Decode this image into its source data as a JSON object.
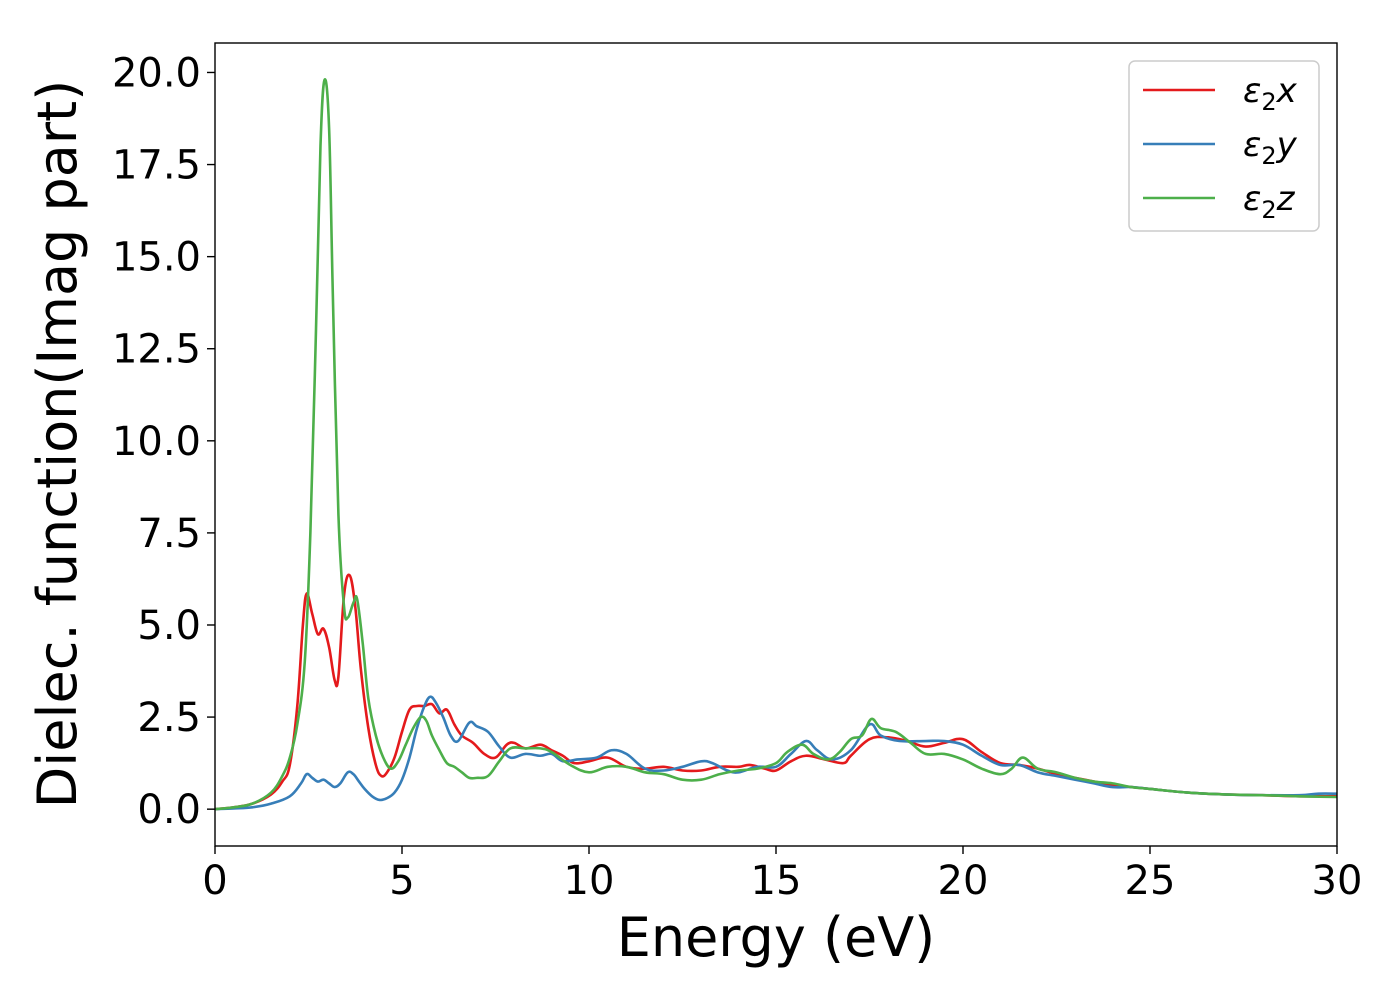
{
  "chart_data": {
    "type": "line",
    "title": "",
    "xlabel": "Energy (eV)",
    "ylabel": "Dielec. function(Imag part)",
    "xlim": [
      0,
      30
    ],
    "ylim": [
      -1.0,
      20.8
    ],
    "xticks": [
      0,
      5,
      10,
      15,
      20,
      25,
      30
    ],
    "xtick_labels": [
      "0",
      "5",
      "10",
      "15",
      "20",
      "25",
      "30"
    ],
    "yticks": [
      0,
      2.5,
      5,
      7.5,
      10,
      12.5,
      15,
      17.5,
      20
    ],
    "ytick_labels": [
      "0.0",
      "2.5",
      "5.0",
      "7.5",
      "10.0",
      "12.5",
      "15.0",
      "17.5",
      "20.0"
    ],
    "grid": false,
    "legend_position": "top-right",
    "series": [
      {
        "name": "ε₂x",
        "legend_base": "ε",
        "legend_sub": "2",
        "legend_var": "x",
        "color": "#e41a1c",
        "points": [
          [
            0,
            0
          ],
          [
            0.5,
            0.05
          ],
          [
            1.0,
            0.15
          ],
          [
            1.5,
            0.4
          ],
          [
            1.8,
            0.75
          ],
          [
            2.0,
            1.2
          ],
          [
            2.2,
            2.8
          ],
          [
            2.35,
            5.0
          ],
          [
            2.45,
            5.85
          ],
          [
            2.6,
            5.3
          ],
          [
            2.75,
            4.75
          ],
          [
            2.9,
            4.9
          ],
          [
            3.05,
            4.4
          ],
          [
            3.2,
            3.5
          ],
          [
            3.3,
            3.6
          ],
          [
            3.45,
            5.8
          ],
          [
            3.6,
            6.35
          ],
          [
            3.75,
            5.5
          ],
          [
            3.9,
            3.8
          ],
          [
            4.1,
            2.2
          ],
          [
            4.3,
            1.2
          ],
          [
            4.45,
            0.9
          ],
          [
            4.6,
            1.0
          ],
          [
            4.8,
            1.4
          ],
          [
            5.0,
            2.1
          ],
          [
            5.2,
            2.7
          ],
          [
            5.4,
            2.8
          ],
          [
            5.6,
            2.8
          ],
          [
            5.8,
            2.85
          ],
          [
            6.0,
            2.6
          ],
          [
            6.2,
            2.7
          ],
          [
            6.4,
            2.3
          ],
          [
            6.6,
            2.0
          ],
          [
            6.9,
            1.8
          ],
          [
            7.2,
            1.5
          ],
          [
            7.5,
            1.4
          ],
          [
            7.8,
            1.75
          ],
          [
            8.0,
            1.8
          ],
          [
            8.3,
            1.65
          ],
          [
            8.7,
            1.75
          ],
          [
            9.0,
            1.6
          ],
          [
            9.3,
            1.45
          ],
          [
            9.6,
            1.25
          ],
          [
            10.0,
            1.3
          ],
          [
            10.5,
            1.4
          ],
          [
            11.0,
            1.15
          ],
          [
            11.5,
            1.1
          ],
          [
            12.0,
            1.15
          ],
          [
            12.5,
            1.05
          ],
          [
            13.0,
            1.05
          ],
          [
            13.5,
            1.15
          ],
          [
            14.0,
            1.15
          ],
          [
            14.3,
            1.2
          ],
          [
            14.7,
            1.1
          ],
          [
            15.0,
            1.05
          ],
          [
            15.4,
            1.3
          ],
          [
            15.8,
            1.45
          ],
          [
            16.3,
            1.35
          ],
          [
            16.8,
            1.25
          ],
          [
            17.0,
            1.45
          ],
          [
            17.5,
            1.9
          ],
          [
            18.0,
            1.95
          ],
          [
            18.5,
            1.85
          ],
          [
            19.0,
            1.7
          ],
          [
            19.5,
            1.8
          ],
          [
            20.0,
            1.9
          ],
          [
            20.5,
            1.55
          ],
          [
            21.0,
            1.25
          ],
          [
            21.5,
            1.2
          ],
          [
            22.0,
            1.1
          ],
          [
            22.5,
            0.95
          ],
          [
            23.0,
            0.85
          ],
          [
            23.5,
            0.75
          ],
          [
            24.0,
            0.65
          ],
          [
            24.5,
            0.6
          ],
          [
            25.0,
            0.55
          ],
          [
            26.0,
            0.45
          ],
          [
            27.0,
            0.4
          ],
          [
            28.0,
            0.38
          ],
          [
            29.0,
            0.35
          ],
          [
            30.0,
            0.35
          ]
        ]
      },
      {
        "name": "ε₂y",
        "legend_base": "ε",
        "legend_sub": "2",
        "legend_var": "y",
        "color": "#377eb8",
        "points": [
          [
            0,
            0
          ],
          [
            0.5,
            0.02
          ],
          [
            1.0,
            0.05
          ],
          [
            1.5,
            0.15
          ],
          [
            2.0,
            0.35
          ],
          [
            2.3,
            0.7
          ],
          [
            2.45,
            0.95
          ],
          [
            2.6,
            0.85
          ],
          [
            2.75,
            0.75
          ],
          [
            2.9,
            0.8
          ],
          [
            3.05,
            0.7
          ],
          [
            3.2,
            0.6
          ],
          [
            3.35,
            0.7
          ],
          [
            3.55,
            1.0
          ],
          [
            3.7,
            0.95
          ],
          [
            3.85,
            0.75
          ],
          [
            4.0,
            0.55
          ],
          [
            4.2,
            0.35
          ],
          [
            4.4,
            0.25
          ],
          [
            4.6,
            0.3
          ],
          [
            4.8,
            0.45
          ],
          [
            5.0,
            0.8
          ],
          [
            5.2,
            1.4
          ],
          [
            5.4,
            2.2
          ],
          [
            5.6,
            2.8
          ],
          [
            5.75,
            3.05
          ],
          [
            5.9,
            2.9
          ],
          [
            6.1,
            2.5
          ],
          [
            6.3,
            2.0
          ],
          [
            6.5,
            1.85
          ],
          [
            6.8,
            2.35
          ],
          [
            7.0,
            2.25
          ],
          [
            7.3,
            2.1
          ],
          [
            7.6,
            1.7
          ],
          [
            7.9,
            1.4
          ],
          [
            8.3,
            1.5
          ],
          [
            8.7,
            1.45
          ],
          [
            9.0,
            1.5
          ],
          [
            9.3,
            1.3
          ],
          [
            9.7,
            1.35
          ],
          [
            10.2,
            1.4
          ],
          [
            10.6,
            1.6
          ],
          [
            11.0,
            1.5
          ],
          [
            11.5,
            1.1
          ],
          [
            12.0,
            1.05
          ],
          [
            12.5,
            1.15
          ],
          [
            13.0,
            1.3
          ],
          [
            13.3,
            1.25
          ],
          [
            13.7,
            1.05
          ],
          [
            14.0,
            1.0
          ],
          [
            14.5,
            1.15
          ],
          [
            15.0,
            1.15
          ],
          [
            15.4,
            1.5
          ],
          [
            15.8,
            1.85
          ],
          [
            16.1,
            1.6
          ],
          [
            16.5,
            1.35
          ],
          [
            17.0,
            1.6
          ],
          [
            17.5,
            2.3
          ],
          [
            17.8,
            2.0
          ],
          [
            18.3,
            1.85
          ],
          [
            19.0,
            1.85
          ],
          [
            19.5,
            1.85
          ],
          [
            20.0,
            1.75
          ],
          [
            20.5,
            1.45
          ],
          [
            21.0,
            1.2
          ],
          [
            21.5,
            1.2
          ],
          [
            22.0,
            1.0
          ],
          [
            22.5,
            0.9
          ],
          [
            23.0,
            0.8
          ],
          [
            23.5,
            0.7
          ],
          [
            24.0,
            0.6
          ],
          [
            24.5,
            0.6
          ],
          [
            25.0,
            0.55
          ],
          [
            26.0,
            0.45
          ],
          [
            27.0,
            0.4
          ],
          [
            28.0,
            0.38
          ],
          [
            29.0,
            0.38
          ],
          [
            29.5,
            0.42
          ],
          [
            30.0,
            0.42
          ]
        ]
      },
      {
        "name": "ε₂z",
        "legend_base": "ε",
        "legend_sub": "2",
        "legend_var": "z",
        "color": "#4daf4a",
        "points": [
          [
            0,
            0
          ],
          [
            0.5,
            0.05
          ],
          [
            1.0,
            0.15
          ],
          [
            1.5,
            0.45
          ],
          [
            1.8,
            0.9
          ],
          [
            2.0,
            1.4
          ],
          [
            2.2,
            2.3
          ],
          [
            2.4,
            4.0
          ],
          [
            2.55,
            7.5
          ],
          [
            2.7,
            13.0
          ],
          [
            2.82,
            18.0
          ],
          [
            2.93,
            19.8
          ],
          [
            3.05,
            18.5
          ],
          [
            3.15,
            14.0
          ],
          [
            3.3,
            8.0
          ],
          [
            3.45,
            5.5
          ],
          [
            3.55,
            5.2
          ],
          [
            3.7,
            5.6
          ],
          [
            3.8,
            5.7
          ],
          [
            3.95,
            4.5
          ],
          [
            4.1,
            3.0
          ],
          [
            4.3,
            2.0
          ],
          [
            4.5,
            1.4
          ],
          [
            4.7,
            1.1
          ],
          [
            4.9,
            1.3
          ],
          [
            5.1,
            1.75
          ],
          [
            5.3,
            2.2
          ],
          [
            5.5,
            2.5
          ],
          [
            5.65,
            2.4
          ],
          [
            5.8,
            2.0
          ],
          [
            6.0,
            1.6
          ],
          [
            6.2,
            1.25
          ],
          [
            6.4,
            1.15
          ],
          [
            6.6,
            1.0
          ],
          [
            6.8,
            0.85
          ],
          [
            7.0,
            0.85
          ],
          [
            7.3,
            0.9
          ],
          [
            7.6,
            1.3
          ],
          [
            7.9,
            1.65
          ],
          [
            8.3,
            1.65
          ],
          [
            8.7,
            1.65
          ],
          [
            9.0,
            1.55
          ],
          [
            9.5,
            1.2
          ],
          [
            10.0,
            1.0
          ],
          [
            10.5,
            1.15
          ],
          [
            11.0,
            1.15
          ],
          [
            11.5,
            1.0
          ],
          [
            12.0,
            0.95
          ],
          [
            12.5,
            0.8
          ],
          [
            13.0,
            0.8
          ],
          [
            13.5,
            0.95
          ],
          [
            14.0,
            1.05
          ],
          [
            14.5,
            1.1
          ],
          [
            15.0,
            1.25
          ],
          [
            15.3,
            1.55
          ],
          [
            15.7,
            1.75
          ],
          [
            16.0,
            1.5
          ],
          [
            16.4,
            1.35
          ],
          [
            16.7,
            1.55
          ],
          [
            17.0,
            1.9
          ],
          [
            17.3,
            2.0
          ],
          [
            17.55,
            2.45
          ],
          [
            17.8,
            2.2
          ],
          [
            18.2,
            2.1
          ],
          [
            18.6,
            1.8
          ],
          [
            19.0,
            1.5
          ],
          [
            19.5,
            1.5
          ],
          [
            20.0,
            1.35
          ],
          [
            20.5,
            1.1
          ],
          [
            21.0,
            0.95
          ],
          [
            21.3,
            1.1
          ],
          [
            21.6,
            1.4
          ],
          [
            22.0,
            1.1
          ],
          [
            22.5,
            1.0
          ],
          [
            23.0,
            0.85
          ],
          [
            23.5,
            0.75
          ],
          [
            24.0,
            0.7
          ],
          [
            24.5,
            0.6
          ],
          [
            25.0,
            0.55
          ],
          [
            26.0,
            0.45
          ],
          [
            27.0,
            0.4
          ],
          [
            28.0,
            0.38
          ],
          [
            29.0,
            0.35
          ],
          [
            30.0,
            0.33
          ]
        ]
      }
    ]
  }
}
